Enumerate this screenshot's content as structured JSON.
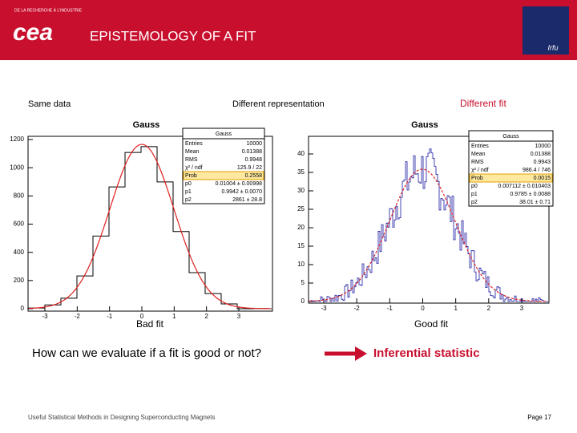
{
  "header": {
    "tagline": "DE LA RECHERCHE À L'INDUSTRIE",
    "logo": "cea",
    "title": "EPISTEMOLOGY OF A FIT",
    "lab_logo": "Irfu"
  },
  "labels": {
    "left": "Same data",
    "middle": "Different representation",
    "right": "Different fit"
  },
  "plots": [
    {
      "title": "Gauss",
      "stats_title": "Gauss",
      "yticks": [
        "0",
        "200",
        "400",
        "600",
        "800",
        "1000",
        "1200"
      ],
      "xticks": [
        "-3",
        "-2",
        "-1",
        "0",
        "1",
        "2",
        "3"
      ],
      "stats": [
        [
          "Entries",
          "10000"
        ],
        [
          "Mean",
          "0.01388"
        ],
        [
          "RMS",
          "0.9948"
        ],
        [
          "χ² / ndf",
          "125.9 / 22"
        ],
        [
          "Prob",
          "0.2558"
        ],
        [
          "p0",
          "0.01004 ± 0.00998"
        ],
        [
          "p1",
          "0.9942 ± 0.0070"
        ],
        [
          "p2",
          "2861 ± 28.8"
        ]
      ],
      "caption": "Bad fit"
    },
    {
      "title": "Gauss",
      "stats_title": "Gauss",
      "yticks": [
        "0",
        "5",
        "10",
        "15",
        "20",
        "25",
        "30",
        "35",
        "40"
      ],
      "xticks": [
        "-3",
        "-2",
        "-1",
        "0",
        "1",
        "2",
        "3"
      ],
      "stats": [
        [
          "Entries",
          "10000"
        ],
        [
          "Mean",
          "0.01388"
        ],
        [
          "RMS",
          "0.9943"
        ],
        [
          "χ² / ndf",
          "986.4 / 746"
        ],
        [
          "Prob",
          "0.0015"
        ],
        [
          "p0",
          "0.007112 ± 0.010403"
        ],
        [
          "p1",
          "0.9785 ± 0.0088"
        ],
        [
          "p2",
          "38.01 ± 0.71"
        ]
      ],
      "caption": "Good fit"
    }
  ],
  "question": "How can we evaluate if a fit is good or not?",
  "answer": "Inferential statistic",
  "footer": {
    "text": "Useful Statistical Methods in Designing Superconducting Magnets",
    "page": "Page 17"
  }
}
